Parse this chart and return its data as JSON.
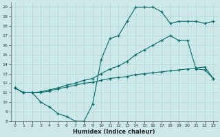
{
  "xlabel": "Humidex (Indice chaleur)",
  "bg_color": "#cce8e8",
  "line_color": "#006b6b",
  "xlim": [
    -0.5,
    23.5
  ],
  "ylim": [
    8,
    20.5
  ],
  "xticks": [
    0,
    1,
    2,
    3,
    4,
    5,
    6,
    7,
    8,
    9,
    10,
    11,
    12,
    13,
    14,
    15,
    16,
    17,
    18,
    19,
    20,
    21,
    22,
    23
  ],
  "yticks": [
    8,
    9,
    10,
    11,
    12,
    13,
    14,
    15,
    16,
    17,
    18,
    19,
    20
  ],
  "line1_x": [
    0,
    1,
    2,
    3,
    4,
    5,
    6,
    7,
    8,
    9,
    10,
    11,
    12,
    13,
    14,
    15,
    16,
    17,
    18,
    19,
    20,
    21,
    22,
    23
  ],
  "line1_y": [
    11.5,
    11.0,
    11.0,
    11.0,
    11.2,
    11.4,
    11.6,
    11.8,
    12.0,
    12.1,
    12.3,
    12.5,
    12.6,
    12.7,
    12.9,
    13.0,
    13.1,
    13.2,
    13.3,
    13.4,
    13.5,
    13.6,
    13.7,
    12.5
  ],
  "line2_x": [
    0,
    1,
    2,
    3,
    4,
    5,
    6,
    7,
    8,
    9,
    10,
    11,
    12,
    13,
    14,
    15,
    16,
    17,
    18,
    19,
    20,
    21,
    22,
    23
  ],
  "line2_y": [
    11.5,
    11.0,
    11.0,
    11.1,
    11.3,
    11.5,
    11.8,
    12.0,
    12.3,
    12.5,
    13.0,
    13.5,
    13.8,
    14.3,
    15.0,
    15.5,
    16.0,
    16.5,
    17.0,
    16.5,
    16.5,
    13.5,
    13.4,
    12.5
  ],
  "line3_x": [
    0,
    1,
    2,
    3,
    4,
    5,
    6,
    7,
    8,
    9,
    10,
    11,
    12,
    13,
    14,
    15,
    16,
    17,
    18,
    19,
    20,
    21,
    22,
    23
  ],
  "line3_y": [
    11.5,
    11.0,
    11.0,
    10.0,
    9.5,
    8.8,
    8.5,
    8.0,
    8.0,
    9.8,
    14.5,
    16.7,
    17.0,
    18.5,
    20.0,
    20.0,
    20.0,
    19.5,
    18.3,
    18.5,
    18.5,
    18.5,
    18.3,
    18.5
  ]
}
